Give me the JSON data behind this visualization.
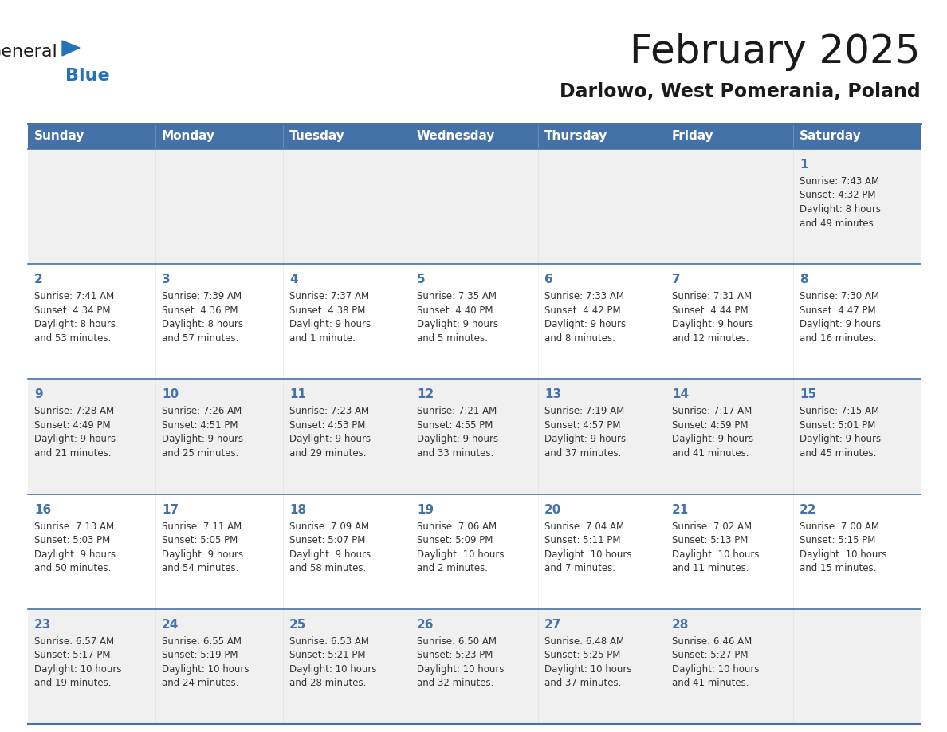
{
  "title": "February 2025",
  "subtitle": "Darlowo, West Pomerania, Poland",
  "days_of_week": [
    "Sunday",
    "Monday",
    "Tuesday",
    "Wednesday",
    "Thursday",
    "Friday",
    "Saturday"
  ],
  "header_bg": "#4472A8",
  "header_text": "#ffffff",
  "row_bg_even": "#f0f0f0",
  "row_bg_odd": "#ffffff",
  "border_color": "#4472A8",
  "title_color": "#1a1a1a",
  "subtitle_color": "#1a1a1a",
  "day_number_color": "#4472A8",
  "cell_text_color": "#333333",
  "calendar_data": [
    [
      null,
      null,
      null,
      null,
      null,
      null,
      {
        "day": 1,
        "sunrise": "7:43 AM",
        "sunset": "4:32 PM",
        "daylight": "8 hours",
        "daylight2": "and 49 minutes."
      }
    ],
    [
      {
        "day": 2,
        "sunrise": "7:41 AM",
        "sunset": "4:34 PM",
        "daylight": "8 hours",
        "daylight2": "and 53 minutes."
      },
      {
        "day": 3,
        "sunrise": "7:39 AM",
        "sunset": "4:36 PM",
        "daylight": "8 hours",
        "daylight2": "and 57 minutes."
      },
      {
        "day": 4,
        "sunrise": "7:37 AM",
        "sunset": "4:38 PM",
        "daylight": "9 hours",
        "daylight2": "and 1 minute."
      },
      {
        "day": 5,
        "sunrise": "7:35 AM",
        "sunset": "4:40 PM",
        "daylight": "9 hours",
        "daylight2": "and 5 minutes."
      },
      {
        "day": 6,
        "sunrise": "7:33 AM",
        "sunset": "4:42 PM",
        "daylight": "9 hours",
        "daylight2": "and 8 minutes."
      },
      {
        "day": 7,
        "sunrise": "7:31 AM",
        "sunset": "4:44 PM",
        "daylight": "9 hours",
        "daylight2": "and 12 minutes."
      },
      {
        "day": 8,
        "sunrise": "7:30 AM",
        "sunset": "4:47 PM",
        "daylight": "9 hours",
        "daylight2": "and 16 minutes."
      }
    ],
    [
      {
        "day": 9,
        "sunrise": "7:28 AM",
        "sunset": "4:49 PM",
        "daylight": "9 hours",
        "daylight2": "and 21 minutes."
      },
      {
        "day": 10,
        "sunrise": "7:26 AM",
        "sunset": "4:51 PM",
        "daylight": "9 hours",
        "daylight2": "and 25 minutes."
      },
      {
        "day": 11,
        "sunrise": "7:23 AM",
        "sunset": "4:53 PM",
        "daylight": "9 hours",
        "daylight2": "and 29 minutes."
      },
      {
        "day": 12,
        "sunrise": "7:21 AM",
        "sunset": "4:55 PM",
        "daylight": "9 hours",
        "daylight2": "and 33 minutes."
      },
      {
        "day": 13,
        "sunrise": "7:19 AM",
        "sunset": "4:57 PM",
        "daylight": "9 hours",
        "daylight2": "and 37 minutes."
      },
      {
        "day": 14,
        "sunrise": "7:17 AM",
        "sunset": "4:59 PM",
        "daylight": "9 hours",
        "daylight2": "and 41 minutes."
      },
      {
        "day": 15,
        "sunrise": "7:15 AM",
        "sunset": "5:01 PM",
        "daylight": "9 hours",
        "daylight2": "and 45 minutes."
      }
    ],
    [
      {
        "day": 16,
        "sunrise": "7:13 AM",
        "sunset": "5:03 PM",
        "daylight": "9 hours",
        "daylight2": "and 50 minutes."
      },
      {
        "day": 17,
        "sunrise": "7:11 AM",
        "sunset": "5:05 PM",
        "daylight": "9 hours",
        "daylight2": "and 54 minutes."
      },
      {
        "day": 18,
        "sunrise": "7:09 AM",
        "sunset": "5:07 PM",
        "daylight": "9 hours",
        "daylight2": "and 58 minutes."
      },
      {
        "day": 19,
        "sunrise": "7:06 AM",
        "sunset": "5:09 PM",
        "daylight": "10 hours",
        "daylight2": "and 2 minutes."
      },
      {
        "day": 20,
        "sunrise": "7:04 AM",
        "sunset": "5:11 PM",
        "daylight": "10 hours",
        "daylight2": "and 7 minutes."
      },
      {
        "day": 21,
        "sunrise": "7:02 AM",
        "sunset": "5:13 PM",
        "daylight": "10 hours",
        "daylight2": "and 11 minutes."
      },
      {
        "day": 22,
        "sunrise": "7:00 AM",
        "sunset": "5:15 PM",
        "daylight": "10 hours",
        "daylight2": "and 15 minutes."
      }
    ],
    [
      {
        "day": 23,
        "sunrise": "6:57 AM",
        "sunset": "5:17 PM",
        "daylight": "10 hours",
        "daylight2": "and 19 minutes."
      },
      {
        "day": 24,
        "sunrise": "6:55 AM",
        "sunset": "5:19 PM",
        "daylight": "10 hours",
        "daylight2": "and 24 minutes."
      },
      {
        "day": 25,
        "sunrise": "6:53 AM",
        "sunset": "5:21 PM",
        "daylight": "10 hours",
        "daylight2": "and 28 minutes."
      },
      {
        "day": 26,
        "sunrise": "6:50 AM",
        "sunset": "5:23 PM",
        "daylight": "10 hours",
        "daylight2": "and 32 minutes."
      },
      {
        "day": 27,
        "sunrise": "6:48 AM",
        "sunset": "5:25 PM",
        "daylight": "10 hours",
        "daylight2": "and 37 minutes."
      },
      {
        "day": 28,
        "sunrise": "6:46 AM",
        "sunset": "5:27 PM",
        "daylight": "10 hours",
        "daylight2": "and 41 minutes."
      },
      null
    ]
  ],
  "logo_color_general": "#1a1a1a",
  "logo_color_blue": "#2472B8",
  "logo_triangle_color": "#2472B8"
}
